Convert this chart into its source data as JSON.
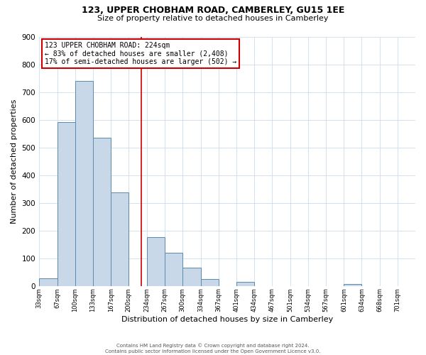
{
  "title1": "123, UPPER CHOBHAM ROAD, CAMBERLEY, GU15 1EE",
  "title2": "Size of property relative to detached houses in Camberley",
  "xlabel": "Distribution of detached houses by size in Camberley",
  "ylabel": "Number of detached properties",
  "bin_labels": [
    "33sqm",
    "67sqm",
    "100sqm",
    "133sqm",
    "167sqm",
    "200sqm",
    "234sqm",
    "267sqm",
    "300sqm",
    "334sqm",
    "367sqm",
    "401sqm",
    "434sqm",
    "467sqm",
    "501sqm",
    "534sqm",
    "567sqm",
    "601sqm",
    "634sqm",
    "668sqm",
    "701sqm"
  ],
  "bin_edges": [
    33,
    67,
    100,
    133,
    167,
    200,
    234,
    267,
    300,
    334,
    367,
    401,
    434,
    467,
    501,
    534,
    567,
    601,
    634,
    668,
    701
  ],
  "bar_heights": [
    27,
    590,
    740,
    535,
    338,
    0,
    175,
    120,
    65,
    25,
    0,
    15,
    0,
    0,
    0,
    0,
    0,
    7,
    0,
    0,
    0
  ],
  "bar_color": "#c8d8e8",
  "bar_edge_color": "#5a8ab0",
  "vline_x": 224,
  "vline_color": "#cc0000",
  "ylim": [
    0,
    900
  ],
  "yticks": [
    0,
    100,
    200,
    300,
    400,
    500,
    600,
    700,
    800,
    900
  ],
  "annotation_line1": "123 UPPER CHOBHAM ROAD: 224sqm",
  "annotation_line2": "← 83% of detached houses are smaller (2,408)",
  "annotation_line3": "17% of semi-detached houses are larger (502) →",
  "annotation_box_color": "#cc0000",
  "footnote1": "Contains HM Land Registry data © Crown copyright and database right 2024.",
  "footnote2": "Contains public sector information licensed under the Open Government Licence v3.0.",
  "background_color": "#ffffff",
  "grid_color": "#ccddee",
  "title1_fontsize": 9,
  "title2_fontsize": 8,
  "ylabel_fontsize": 8,
  "xlabel_fontsize": 8,
  "ytick_fontsize": 7.5,
  "xtick_fontsize": 6,
  "annot_fontsize": 7,
  "footnote_fontsize": 5
}
